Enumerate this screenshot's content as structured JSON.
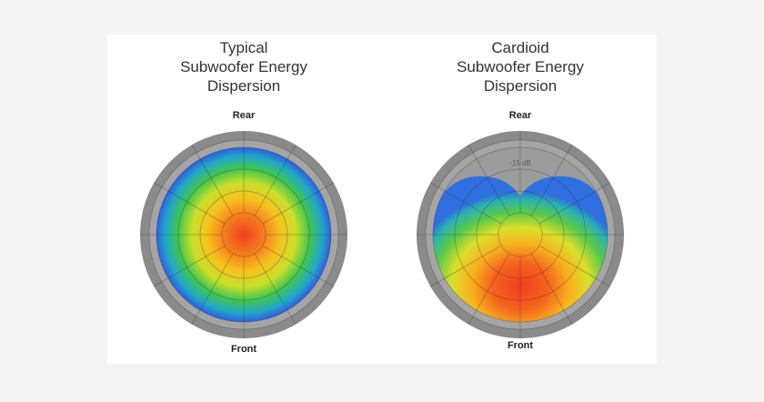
{
  "diagrams": [
    {
      "title_lines": [
        "Typical",
        "Subwoofer Energy",
        "Dispersion"
      ],
      "rear_label": "Rear",
      "front_label": "Front",
      "pattern": "omnidirectional"
    },
    {
      "title_lines": [
        "Cardioid",
        "Subwoofer Energy",
        "Dispersion"
      ],
      "rear_label": "Rear",
      "front_label": "Front",
      "pattern": "cardioid",
      "rear_level_label": "-15 dB"
    }
  ],
  "colors": {
    "ring_outer": "#8a8a8a",
    "ring_inner": "#a7a7a7",
    "hot": "#f2401e",
    "warm": "#f7a81c",
    "mid": "#d8e22a",
    "cool": "#39c24f",
    "cold": "#2f6fe0"
  }
}
